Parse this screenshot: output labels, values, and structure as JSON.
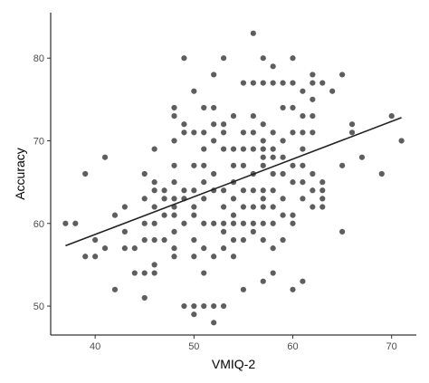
{
  "chart_data": {
    "type": "scatter",
    "title": "",
    "xlabel": "VMIQ-2",
    "ylabel": "Accuracy",
    "xlim": [
      35.5,
      72.5
    ],
    "ylim": [
      46.5,
      85.5
    ],
    "xticks": [
      40,
      50,
      60,
      70
    ],
    "yticks": [
      50,
      60,
      70,
      80
    ],
    "grid": false,
    "legend": "none",
    "point_color": "#3a3a3a",
    "line_color": "#222222",
    "trend_line": {
      "x": [
        37,
        71
      ],
      "y": [
        57.3,
        72.8
      ]
    },
    "points": [
      [
        37,
        60
      ],
      [
        38,
        60
      ],
      [
        39,
        66
      ],
      [
        39,
        56
      ],
      [
        40,
        58
      ],
      [
        40,
        56
      ],
      [
        41,
        68
      ],
      [
        41,
        57
      ],
      [
        42,
        61
      ],
      [
        42,
        52
      ],
      [
        43,
        62
      ],
      [
        43,
        59
      ],
      [
        43,
        57
      ],
      [
        44,
        57
      ],
      [
        44,
        54
      ],
      [
        45,
        66
      ],
      [
        45,
        63
      ],
      [
        45,
        60
      ],
      [
        45,
        58
      ],
      [
        45,
        54
      ],
      [
        45,
        51
      ],
      [
        46,
        69
      ],
      [
        46,
        65
      ],
      [
        46,
        64
      ],
      [
        46,
        62
      ],
      [
        46,
        60
      ],
      [
        46,
        58
      ],
      [
        46,
        55
      ],
      [
        46,
        54
      ],
      [
        47,
        64
      ],
      [
        47,
        63
      ],
      [
        47,
        61
      ],
      [
        47,
        58
      ],
      [
        48,
        74
      ],
      [
        48,
        73
      ],
      [
        48,
        70
      ],
      [
        48,
        67
      ],
      [
        48,
        65
      ],
      [
        48,
        63
      ],
      [
        48,
        62
      ],
      [
        48,
        61
      ],
      [
        48,
        59
      ],
      [
        48,
        57
      ],
      [
        48,
        56
      ],
      [
        49,
        80
      ],
      [
        49,
        72
      ],
      [
        49,
        71
      ],
      [
        49,
        64
      ],
      [
        49,
        63
      ],
      [
        49,
        60
      ],
      [
        49,
        50
      ],
      [
        50,
        76
      ],
      [
        50,
        71
      ],
      [
        50,
        67
      ],
      [
        50,
        64
      ],
      [
        50,
        62
      ],
      [
        50,
        61
      ],
      [
        50,
        58
      ],
      [
        50,
        56
      ],
      [
        50,
        50
      ],
      [
        50,
        49
      ],
      [
        51,
        74
      ],
      [
        51,
        71
      ],
      [
        51,
        69
      ],
      [
        51,
        67
      ],
      [
        51,
        65
      ],
      [
        51,
        63
      ],
      [
        51,
        60
      ],
      [
        51,
        57
      ],
      [
        51,
        54
      ],
      [
        51,
        50
      ],
      [
        52,
        78
      ],
      [
        52,
        74
      ],
      [
        52,
        72
      ],
      [
        52,
        70
      ],
      [
        52,
        66
      ],
      [
        52,
        64
      ],
      [
        52,
        60
      ],
      [
        52,
        56
      ],
      [
        52,
        50
      ],
      [
        52,
        48
      ],
      [
        53,
        80
      ],
      [
        53,
        72
      ],
      [
        53,
        71
      ],
      [
        53,
        69
      ],
      [
        53,
        64
      ],
      [
        53,
        62
      ],
      [
        53,
        60
      ],
      [
        53,
        59
      ],
      [
        53,
        57
      ],
      [
        53,
        50
      ],
      [
        54,
        73
      ],
      [
        54,
        69
      ],
      [
        54,
        67
      ],
      [
        54,
        65
      ],
      [
        54,
        63
      ],
      [
        54,
        61
      ],
      [
        54,
        60
      ],
      [
        54,
        58
      ],
      [
        54,
        56
      ],
      [
        55,
        77
      ],
      [
        55,
        71
      ],
      [
        55,
        69
      ],
      [
        55,
        67
      ],
      [
        55,
        64
      ],
      [
        55,
        62
      ],
      [
        55,
        60
      ],
      [
        55,
        58
      ],
      [
        55,
        52
      ],
      [
        56,
        83
      ],
      [
        56,
        77
      ],
      [
        56,
        73
      ],
      [
        56,
        71
      ],
      [
        56,
        69
      ],
      [
        56,
        66
      ],
      [
        56,
        64
      ],
      [
        56,
        62
      ],
      [
        56,
        60
      ],
      [
        56,
        59
      ],
      [
        57,
        80
      ],
      [
        57,
        77
      ],
      [
        57,
        72
      ],
      [
        57,
        70
      ],
      [
        57,
        69
      ],
      [
        57,
        68
      ],
      [
        57,
        67
      ],
      [
        57,
        64
      ],
      [
        57,
        63
      ],
      [
        57,
        62
      ],
      [
        57,
        60
      ],
      [
        57,
        58
      ],
      [
        57,
        53
      ],
      [
        58,
        79
      ],
      [
        58,
        77
      ],
      [
        58,
        71
      ],
      [
        58,
        69
      ],
      [
        58,
        68
      ],
      [
        58,
        66
      ],
      [
        58,
        64
      ],
      [
        58,
        62
      ],
      [
        58,
        60
      ],
      [
        58,
        57
      ],
      [
        58,
        54
      ],
      [
        59,
        77
      ],
      [
        59,
        74
      ],
      [
        59,
        70
      ],
      [
        59,
        68
      ],
      [
        59,
        66
      ],
      [
        59,
        63
      ],
      [
        59,
        61
      ],
      [
        59,
        58
      ],
      [
        60,
        80
      ],
      [
        60,
        77
      ],
      [
        60,
        74
      ],
      [
        60,
        71
      ],
      [
        60,
        67
      ],
      [
        60,
        65
      ],
      [
        60,
        61
      ],
      [
        60,
        60
      ],
      [
        60,
        52
      ],
      [
        61,
        76
      ],
      [
        61,
        73
      ],
      [
        61,
        71
      ],
      [
        61,
        69
      ],
      [
        61,
        67
      ],
      [
        61,
        65
      ],
      [
        61,
        63
      ],
      [
        61,
        53
      ],
      [
        62,
        78
      ],
      [
        62,
        77
      ],
      [
        62,
        75
      ],
      [
        62,
        73
      ],
      [
        62,
        71
      ],
      [
        62,
        66
      ],
      [
        62,
        64
      ],
      [
        62,
        62
      ],
      [
        63,
        77
      ],
      [
        63,
        65
      ],
      [
        63,
        64
      ],
      [
        63,
        63
      ],
      [
        63,
        62
      ],
      [
        64,
        76
      ],
      [
        65,
        78
      ],
      [
        65,
        67
      ],
      [
        65,
        59
      ],
      [
        66,
        72
      ],
      [
        66,
        71
      ],
      [
        67,
        68
      ],
      [
        69,
        66
      ],
      [
        70,
        73
      ],
      [
        71,
        70
      ]
    ]
  }
}
